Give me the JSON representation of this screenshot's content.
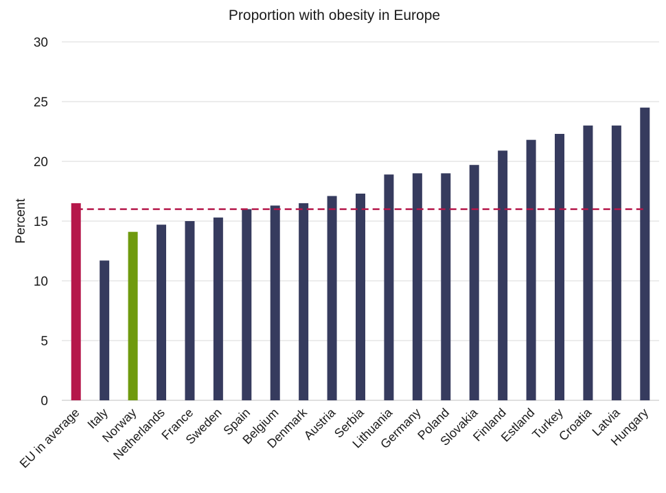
{
  "chart_data": {
    "type": "bar",
    "title": "Proportion with obesity in Europe",
    "xlabel": "",
    "ylabel": "Percent",
    "ylim": [
      0,
      30
    ],
    "yticks": [
      0,
      5,
      10,
      15,
      20,
      25,
      30
    ],
    "grid": true,
    "categories": [
      "EU in average",
      "Italy",
      "Norway",
      "Netherlands",
      "France",
      "Sweden",
      "Spain",
      "Belgium",
      "Denmark",
      "Austria",
      "Serbia",
      "Lithuania",
      "Germany",
      "Poland",
      "Slovakia",
      "Finland",
      "Estland",
      "Turkey",
      "Croatia",
      "Latvia",
      "Hungary"
    ],
    "values": [
      16.5,
      11.7,
      14.1,
      14.7,
      15.0,
      15.3,
      16.0,
      16.3,
      16.5,
      17.1,
      17.3,
      18.9,
      19.0,
      19.0,
      19.7,
      20.9,
      21.8,
      22.3,
      23.0,
      23.0,
      24.5
    ],
    "bar_colors": [
      "#b5174a",
      "#363b5e",
      "#6f9a0e",
      "#363b5e",
      "#363b5e",
      "#363b5e",
      "#363b5e",
      "#363b5e",
      "#363b5e",
      "#363b5e",
      "#363b5e",
      "#363b5e",
      "#363b5e",
      "#363b5e",
      "#363b5e",
      "#363b5e",
      "#363b5e",
      "#363b5e",
      "#363b5e",
      "#363b5e",
      "#363b5e"
    ],
    "reference_line": {
      "value": 16.0,
      "style": "dashed",
      "color": "#b5174a"
    },
    "colors": {
      "default": "#363b5e",
      "highlight_eu": "#b5174a",
      "highlight_norway": "#6f9a0e",
      "grid": "#d9d9d9"
    }
  }
}
